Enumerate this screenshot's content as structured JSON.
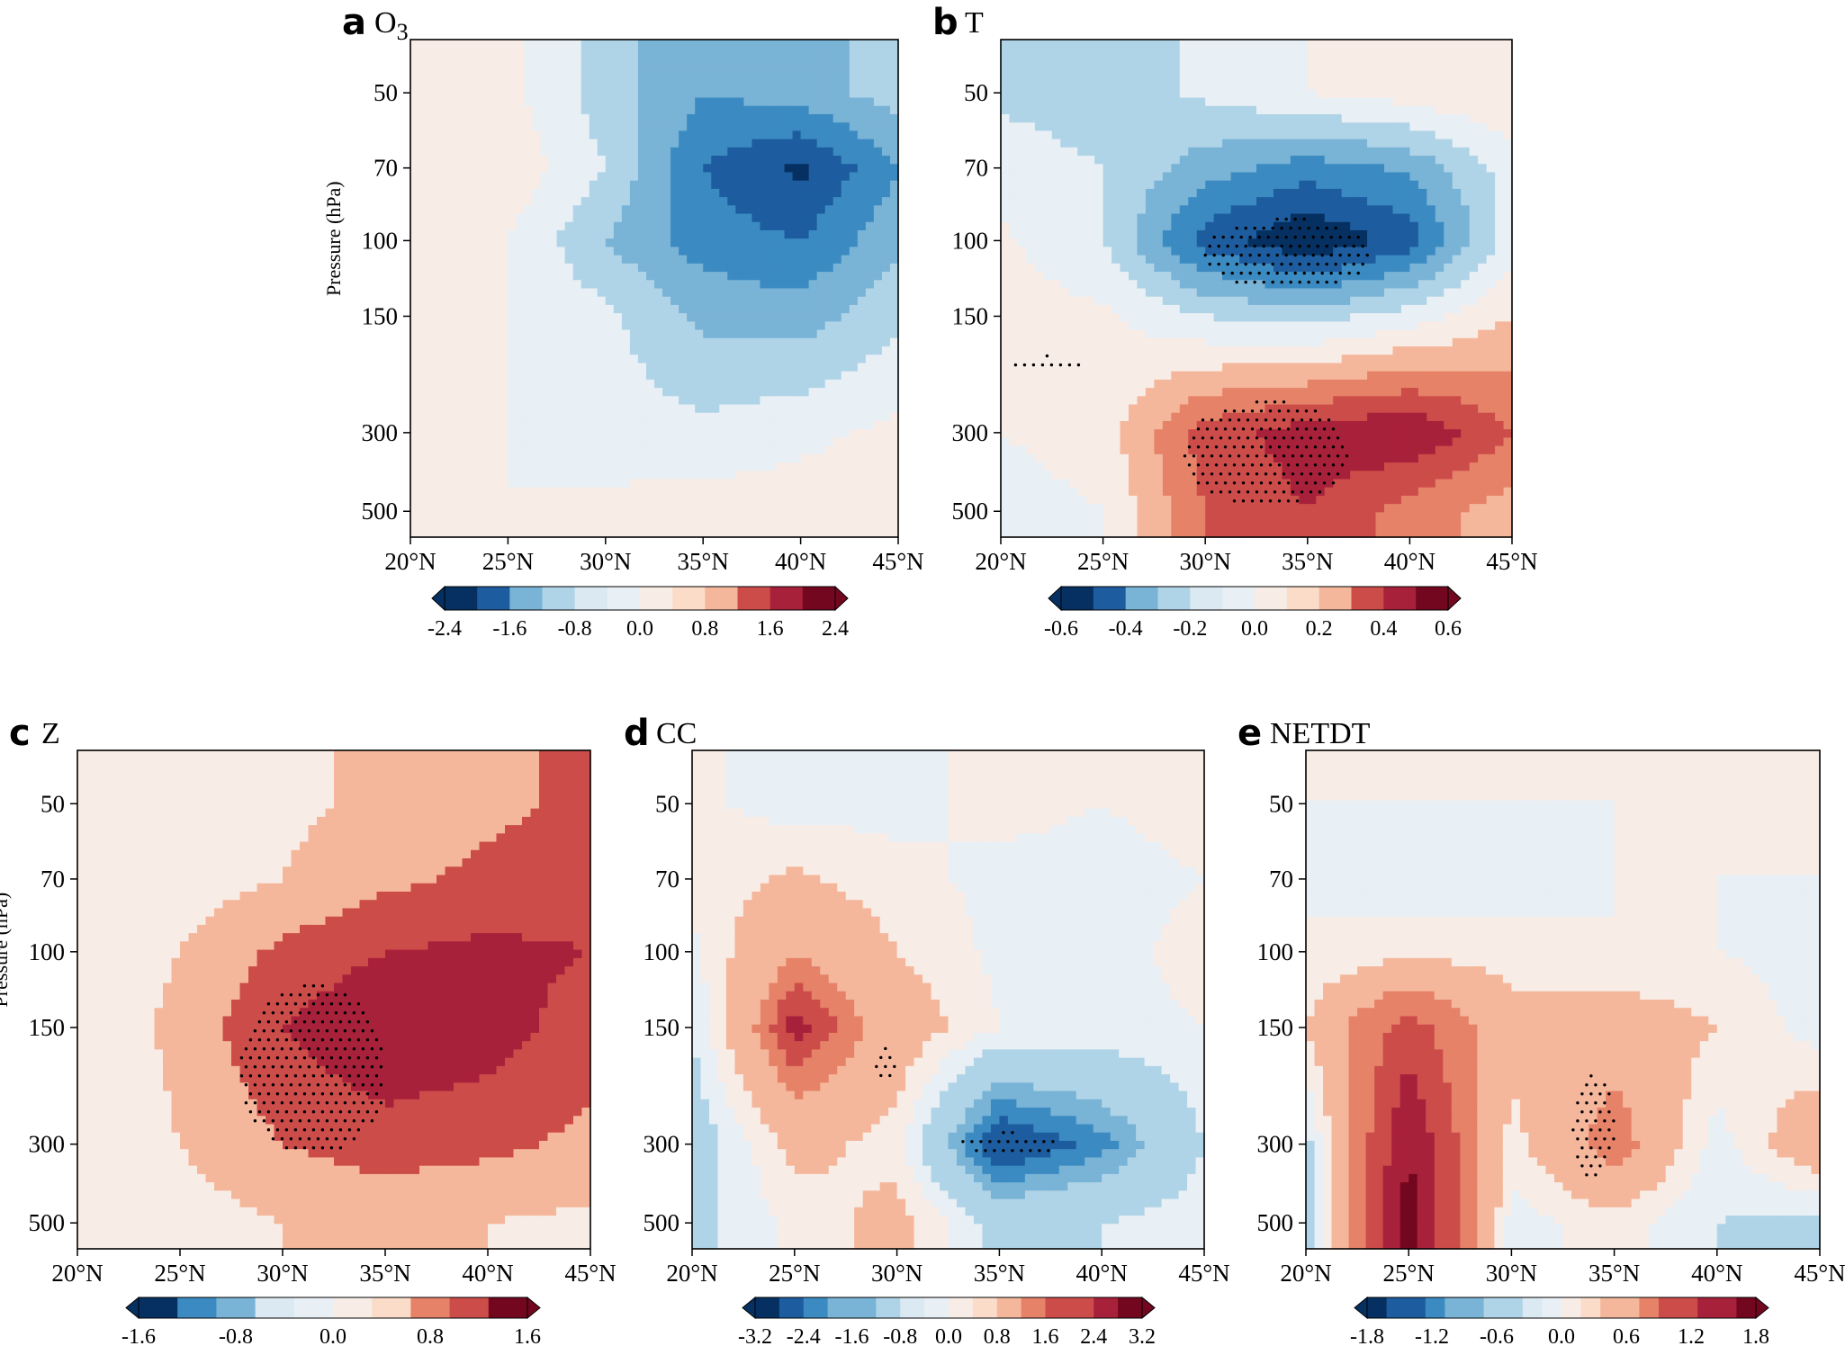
{
  "palette": {
    "blues": [
      "#053061",
      "#1d5d9f",
      "#3b8bc2",
      "#79b3d6",
      "#b0d4e7",
      "#dbe9f2"
    ],
    "neutral_neg": "#e8eff5",
    "neutral_pos": "#f8ece6",
    "reds": [
      "#fbdcc9",
      "#f5b79c",
      "#e58268",
      "#cc4c4a",
      "#a8213a",
      "#73071f"
    ],
    "stipple": "#000000"
  },
  "chart_data": [
    {
      "id": "a",
      "panel_label": "a",
      "title_main": "O",
      "title_sub": "3",
      "type": "contour",
      "x": [
        20,
        25,
        30,
        35,
        40,
        45
      ],
      "xticklabels": [
        "20°N",
        "25°N",
        "30°N",
        "35°N",
        "40°N",
        "45°N"
      ],
      "y_levels": [
        50,
        70,
        100,
        150,
        300,
        500
      ],
      "yticklabels": [
        "50",
        "70",
        "100",
        "150",
        "300",
        "500"
      ],
      "ylabel": "Pressure (hPa)",
      "xlim": [
        20,
        45
      ],
      "grid": [
        [
          0.1,
          0.1,
          -0.6,
          -1.2,
          -1.0,
          -0.6
        ],
        [
          0.2,
          0.3,
          -0.4,
          -1.6,
          -2.1,
          -1.2
        ],
        [
          0.0,
          0.0,
          -0.8,
          -1.4,
          -1.6,
          -0.9
        ],
        [
          0.0,
          0.0,
          -0.3,
          -0.9,
          -1.0,
          -0.5
        ],
        [
          0.0,
          0.0,
          -0.2,
          -0.3,
          -0.1,
          0.1
        ],
        [
          0.0,
          0.0,
          0.1,
          0.2,
          0.2,
          0.2
        ]
      ],
      "levels": [
        -2.4,
        -2.0,
        -1.6,
        -1.2,
        -0.8,
        -0.4,
        0.0,
        0.4,
        0.8,
        1.2,
        1.6,
        2.0,
        2.4
      ],
      "colorbar_ticks": [
        "-2.4",
        "-1.6",
        "-0.8",
        "0.0",
        "0.8",
        "1.6",
        "2.4"
      ],
      "stipple": []
    },
    {
      "id": "b",
      "panel_label": "b",
      "title_main": "T",
      "title_sub": "",
      "type": "contour",
      "x": [
        20,
        25,
        30,
        35,
        40,
        45
      ],
      "xticklabels": [
        "20°N",
        "25°N",
        "30°N",
        "35°N",
        "40°N",
        "45°N"
      ],
      "y_levels": [
        50,
        70,
        100,
        150,
        300,
        500
      ],
      "yticklabels": [
        "50",
        "70",
        "100",
        "150",
        "300",
        "500"
      ],
      "ylabel": "",
      "xlim": [
        20,
        45
      ],
      "grid": [
        [
          -0.12,
          -0.15,
          -0.08,
          0.0,
          0.05,
          0.1
        ],
        [
          -0.05,
          -0.1,
          -0.25,
          -0.35,
          -0.28,
          -0.05
        ],
        [
          0.02,
          -0.1,
          -0.45,
          -0.6,
          -0.45,
          -0.05
        ],
        [
          0.05,
          0.02,
          -0.1,
          -0.15,
          -0.05,
          0.1
        ],
        [
          0.0,
          0.05,
          0.35,
          0.45,
          0.5,
          0.3
        ],
        [
          -0.05,
          0.0,
          0.3,
          0.4,
          0.25,
          0.15
        ]
      ],
      "levels": [
        -0.6,
        -0.5,
        -0.4,
        -0.3,
        -0.2,
        -0.1,
        0.0,
        0.1,
        0.2,
        0.3,
        0.4,
        0.5,
        0.6
      ],
      "colorbar_ticks": [
        "-0.6",
        "-0.4",
        "-0.2",
        "0.0",
        "0.2",
        "0.4",
        "0.6"
      ],
      "stipple": [
        {
          "lat": [
            30,
            38
          ],
          "p": [
            90,
            130
          ]
        },
        {
          "lat": [
            29,
            37
          ],
          "p": [
            250,
            480
          ]
        },
        {
          "lat": [
            20.5,
            24
          ],
          "p": [
            190,
            210
          ]
        }
      ]
    },
    {
      "id": "c",
      "panel_label": "c",
      "title_main": "Z",
      "title_sub": "",
      "type": "contour",
      "x": [
        20,
        25,
        30,
        35,
        40,
        45
      ],
      "xticklabels": [
        "20°N",
        "25°N",
        "30°N",
        "35°N",
        "40°N",
        "45°N"
      ],
      "y_levels": [
        50,
        70,
        100,
        150,
        300,
        500
      ],
      "yticklabels": [
        "50",
        "70",
        "100",
        "150",
        "300",
        "500"
      ],
      "ylabel": "Pressure (hPa)",
      "xlim": [
        20,
        45
      ],
      "grid": [
        [
          0.0,
          0.2,
          0.3,
          0.5,
          0.7,
          0.9
        ],
        [
          0.0,
          0.2,
          0.4,
          0.7,
          0.9,
          1.0
        ],
        [
          0.1,
          0.4,
          0.9,
          1.2,
          1.3,
          1.2
        ],
        [
          0.1,
          0.5,
          1.2,
          1.6,
          1.4,
          1.0
        ],
        [
          0.1,
          0.4,
          0.8,
          1.0,
          0.9,
          0.7
        ],
        [
          0.0,
          0.2,
          0.4,
          0.5,
          0.4,
          0.3
        ]
      ],
      "levels": [
        -2.0,
        -1.6,
        -1.2,
        -0.8,
        -0.4,
        0.0,
        0.4,
        0.8,
        1.2,
        1.6,
        2.0
      ],
      "colorbar_ticks": [
        "-1.6",
        "-0.8",
        "0.0",
        "0.8",
        "1.6"
      ],
      "stipple": [
        {
          "lat": [
            28,
            35
          ],
          "p": [
            120,
            320
          ]
        }
      ]
    },
    {
      "id": "d",
      "panel_label": "d",
      "title_main": "CC",
      "title_sub": "",
      "type": "contour",
      "x": [
        20,
        25,
        30,
        35,
        40,
        45
      ],
      "xticklabels": [
        "20°N",
        "25°N",
        "30°N",
        "35°N",
        "40°N",
        "45°N"
      ],
      "y_levels": [
        50,
        70,
        100,
        150,
        300,
        500
      ],
      "yticklabels": [
        "50",
        "70",
        "100",
        "150",
        "300",
        "500"
      ],
      "ylabel": "",
      "xlim": [
        20,
        45
      ],
      "grid": [
        [
          0.1,
          -0.2,
          -0.1,
          0.1,
          0.0,
          0.1
        ],
        [
          0.1,
          0.5,
          0.1,
          -0.1,
          -0.1,
          0.0
        ],
        [
          -0.1,
          1.2,
          0.4,
          -0.1,
          -0.1,
          0.1
        ],
        [
          -0.4,
          2.2,
          0.8,
          0.0,
          -0.1,
          0.0
        ],
        [
          -0.8,
          0.6,
          0.2,
          -2.6,
          -1.8,
          -0.4
        ],
        [
          -0.6,
          0.1,
          0.6,
          -0.6,
          -0.4,
          -0.1
        ]
      ],
      "levels": [
        -3.2,
        -2.8,
        -2.4,
        -2.0,
        -1.6,
        -1.2,
        -0.8,
        -0.4,
        0.0,
        0.4,
        0.8,
        1.2,
        1.6,
        2.0,
        2.4,
        2.8,
        3.2
      ],
      "colorbar_ticks": [
        "-3.2",
        "-2.4",
        "-1.6",
        "-0.8",
        "0.0",
        "0.8",
        "1.6",
        "2.4",
        "3.2"
      ],
      "stipple": [
        {
          "lat": [
            29,
            30
          ],
          "p": [
            170,
            210
          ]
        },
        {
          "lat": [
            33,
            38
          ],
          "p": [
            280,
            320
          ]
        }
      ]
    },
    {
      "id": "e",
      "panel_label": "e",
      "title_main": "NETDT",
      "title_sub": "",
      "type": "contour",
      "x": [
        20,
        25,
        30,
        35,
        40,
        45
      ],
      "xticklabels": [
        "20°N",
        "25°N",
        "30°N",
        "35°N",
        "40°N",
        "45°N"
      ],
      "y_levels": [
        50,
        70,
        100,
        150,
        300,
        500
      ],
      "yticklabels": [
        "50",
        "70",
        "100",
        "150",
        "300",
        "500"
      ],
      "ylabel": "",
      "xlim": [
        20,
        45
      ],
      "grid": [
        [
          0.0,
          0.0,
          0.0,
          0.0,
          0.0,
          0.0
        ],
        [
          0.0,
          -0.1,
          -0.1,
          0.0,
          0.0,
          0.0
        ],
        [
          0.0,
          0.1,
          0.1,
          0.0,
          0.0,
          -0.1
        ],
        [
          0.2,
          1.2,
          0.3,
          0.4,
          0.2,
          -0.1
        ],
        [
          -0.3,
          1.8,
          0.1,
          0.8,
          -0.1,
          0.5
        ],
        [
          -0.4,
          2.0,
          -0.1,
          0.1,
          -0.2,
          -0.3
        ]
      ],
      "levels": [
        -2.0,
        -1.8,
        -1.6,
        -1.4,
        -1.2,
        -1.0,
        -0.8,
        -0.6,
        -0.4,
        -0.2,
        0.0,
        0.2,
        0.4,
        0.6,
        0.8,
        1.0,
        1.2,
        1.4,
        1.6,
        1.8,
        2.0
      ],
      "colorbar_ticks": [
        "-1.8",
        "-1.2",
        "-0.6",
        "0.0",
        "0.6",
        "1.2",
        "1.8"
      ],
      "stipple": [
        {
          "lat": [
            33,
            35
          ],
          "p": [
            200,
            380
          ]
        }
      ]
    }
  ]
}
